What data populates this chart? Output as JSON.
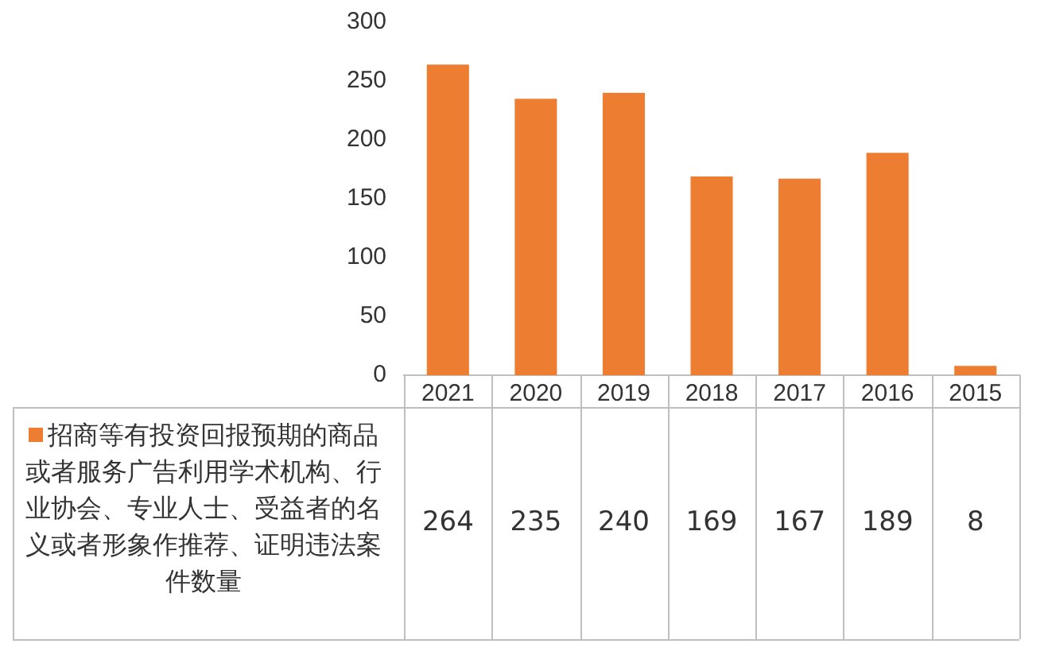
{
  "chart_data": {
    "type": "bar",
    "categories": [
      "2021",
      "2020",
      "2019",
      "2018",
      "2017",
      "2016",
      "2015"
    ],
    "series": [
      {
        "name": "招商等有投资回报预期的商品或者服务广告利用学术机构、行业协会、专业人士、受益者的名义或者形象作推荐、证明违法案件数量",
        "color": "#ed7d31",
        "values": [
          264,
          235,
          240,
          169,
          167,
          189,
          8
        ]
      }
    ],
    "ylim": [
      0,
      300
    ],
    "yticks": [
      0,
      50,
      100,
      150,
      200,
      250,
      300
    ],
    "grid": false,
    "legend": "bottom",
    "data_labels": true
  }
}
